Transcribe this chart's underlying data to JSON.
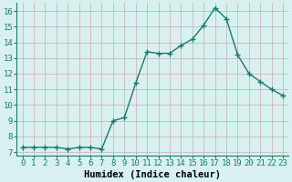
{
  "x": [
    0,
    1,
    2,
    3,
    4,
    5,
    6,
    7,
    8,
    9,
    10,
    11,
    12,
    13,
    14,
    15,
    16,
    17,
    18,
    19,
    20,
    21,
    22,
    23
  ],
  "y": [
    7.3,
    7.3,
    7.3,
    7.3,
    7.2,
    7.3,
    7.3,
    7.2,
    9.0,
    9.2,
    11.4,
    13.4,
    13.3,
    13.3,
    13.8,
    14.2,
    15.1,
    16.2,
    15.5,
    13.2,
    12.0,
    11.5,
    11.0,
    10.6
  ],
  "line_color": "#1a7a6e",
  "marker": "+",
  "marker_size": 4,
  "line_width": 1.0,
  "bg_color": "#d8f0f0",
  "grid_color": "#c8b8b8",
  "xlabel": "Humidex (Indice chaleur)",
  "xlim": [
    -0.5,
    23.5
  ],
  "ylim": [
    6.8,
    16.5
  ],
  "yticks": [
    7,
    8,
    9,
    10,
    11,
    12,
    13,
    14,
    15,
    16
  ],
  "xtick_labels": [
    "0",
    "1",
    "2",
    "3",
    "4",
    "5",
    "6",
    "7",
    "8",
    "9",
    "10",
    "11",
    "12",
    "13",
    "14",
    "15",
    "16",
    "17",
    "18",
    "19",
    "20",
    "21",
    "22",
    "23"
  ],
  "xlabel_fontsize": 7.5,
  "tick_fontsize": 6.5
}
